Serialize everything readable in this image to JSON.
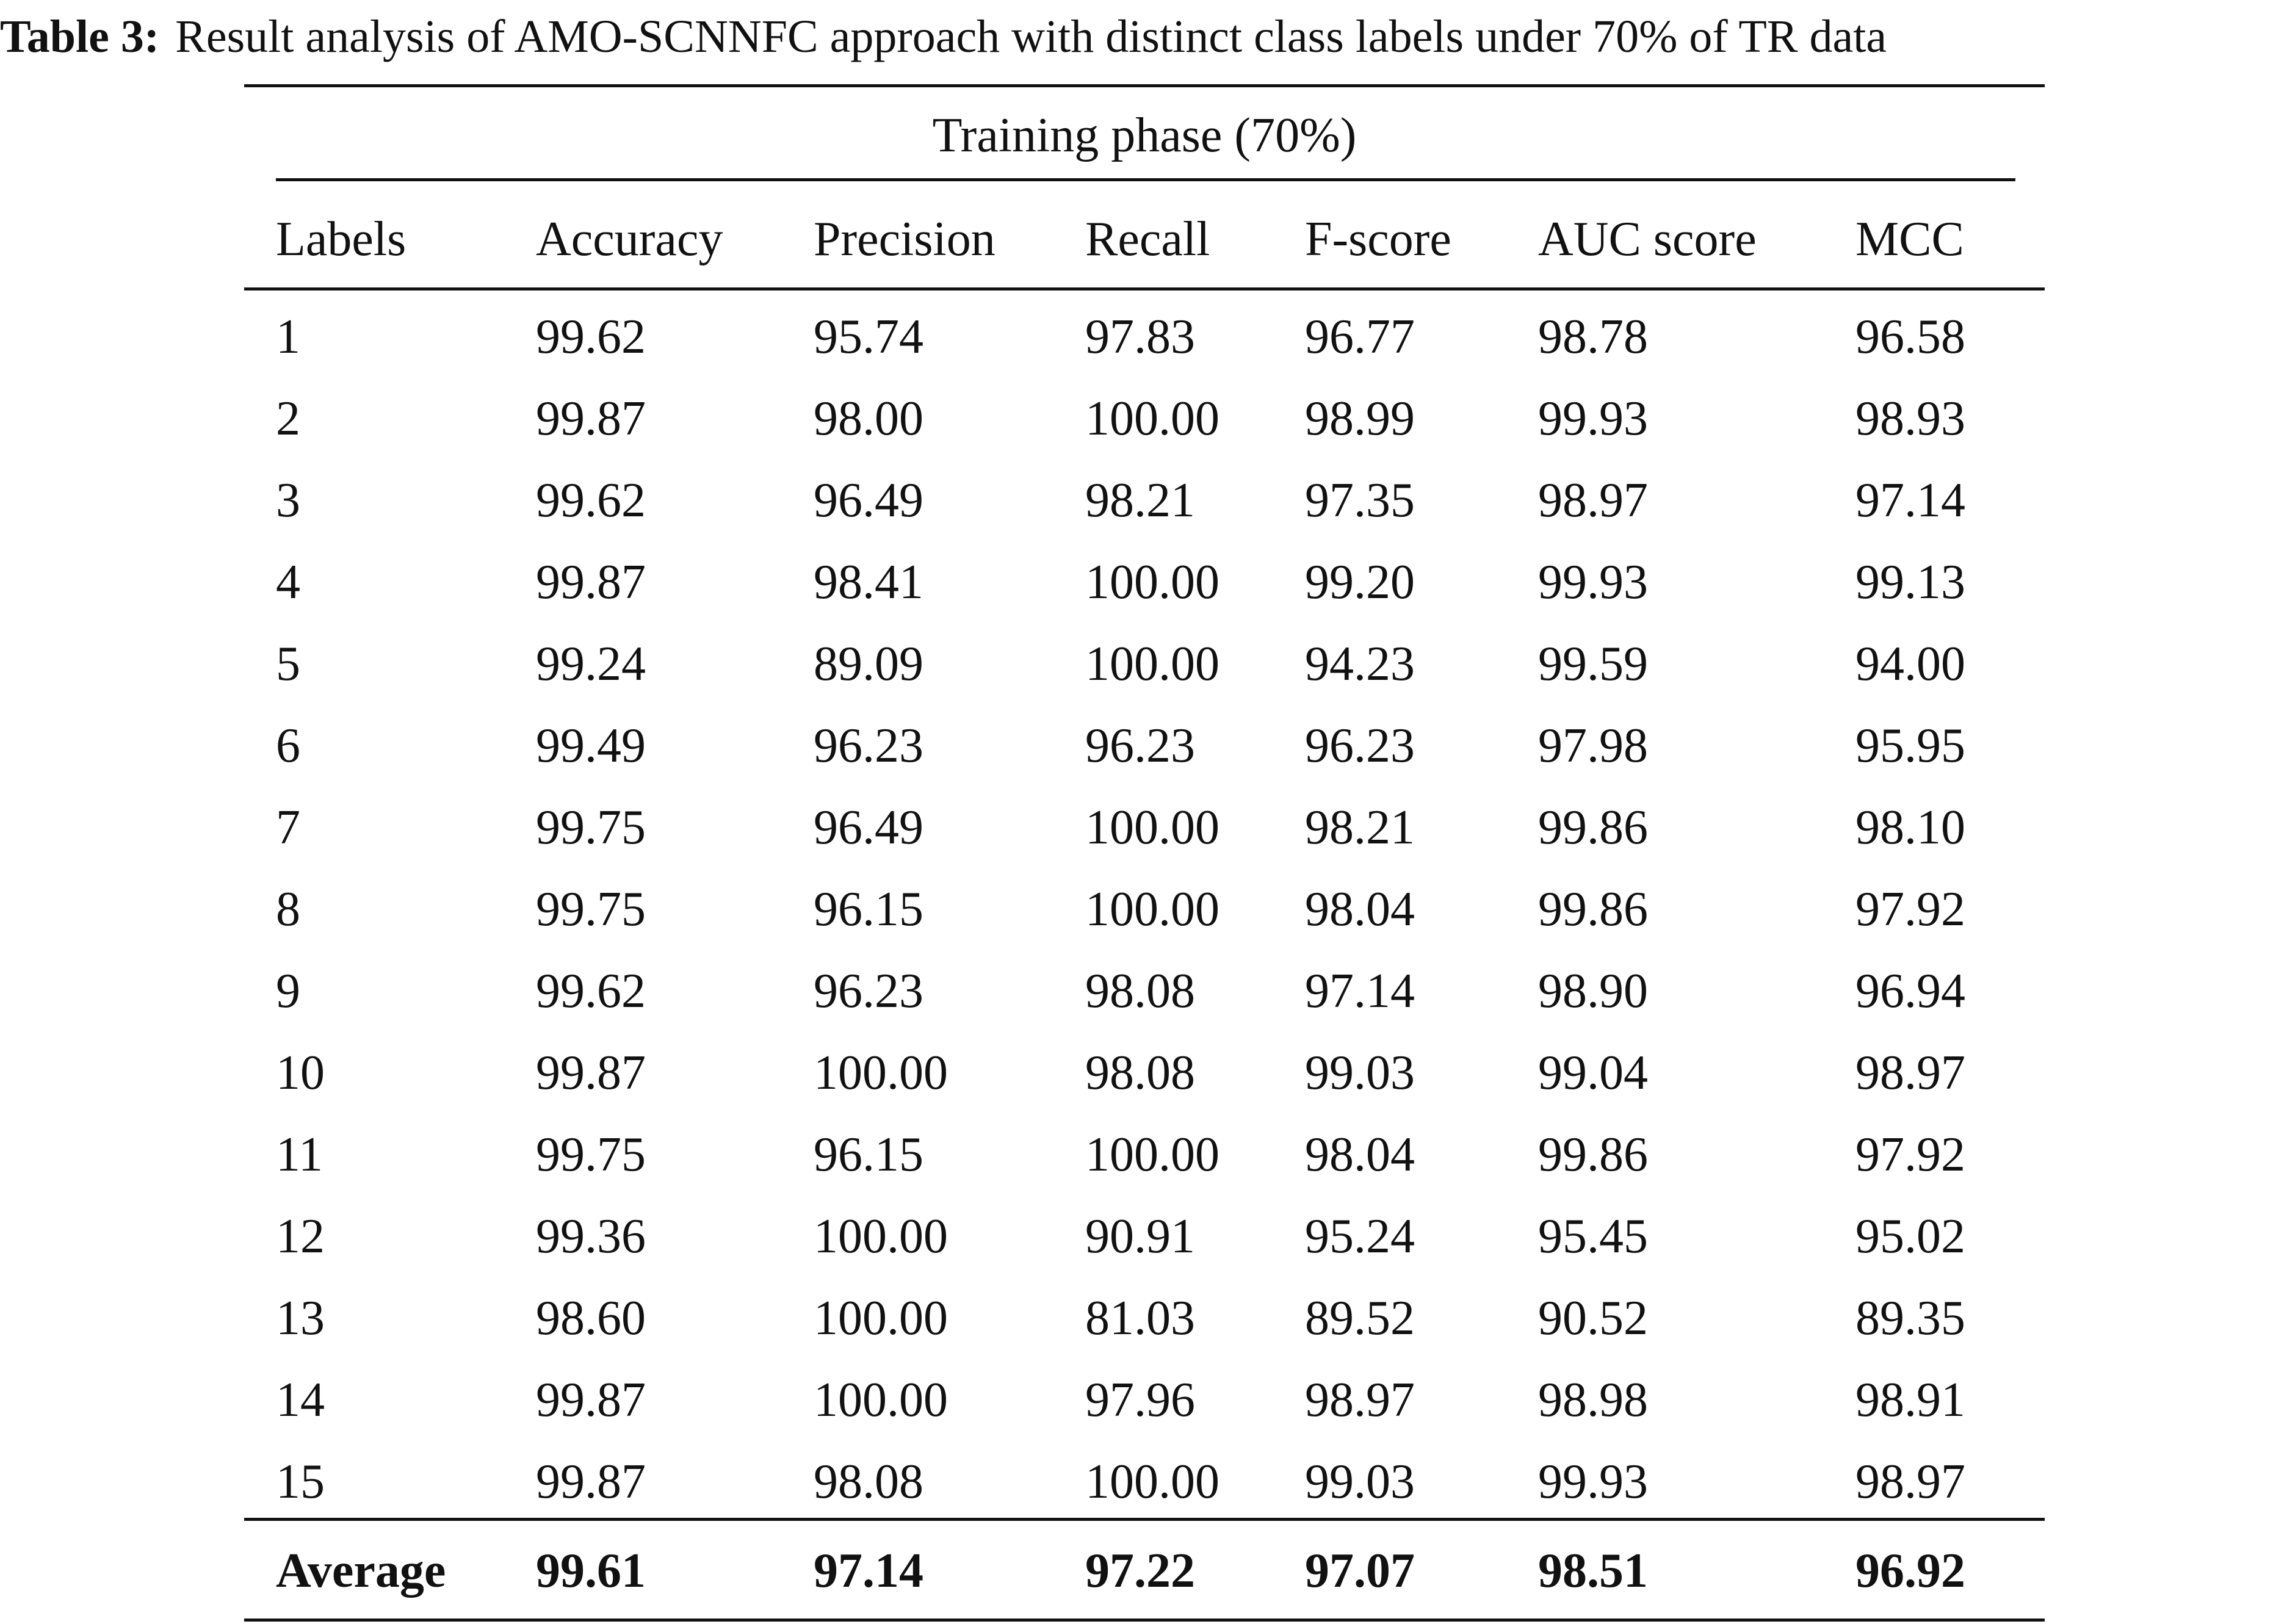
{
  "caption": {
    "label": "Table 3:",
    "text": "Result analysis of AMO-SCNNFC approach with distinct class labels under 70% of TR data"
  },
  "table": {
    "phase_title": "Training phase (70%)",
    "columns": [
      "Labels",
      "Accuracy",
      "Precision",
      "Recall",
      "F-score",
      "AUC score",
      "MCC"
    ],
    "rows": [
      [
        "1",
        "99.62",
        "95.74",
        "97.83",
        "96.77",
        "98.78",
        "96.58"
      ],
      [
        "2",
        "99.87",
        "98.00",
        "100.00",
        "98.99",
        "99.93",
        "98.93"
      ],
      [
        "3",
        "99.62",
        "96.49",
        "98.21",
        "97.35",
        "98.97",
        "97.14"
      ],
      [
        "4",
        "99.87",
        "98.41",
        "100.00",
        "99.20",
        "99.93",
        "99.13"
      ],
      [
        "5",
        "99.24",
        "89.09",
        "100.00",
        "94.23",
        "99.59",
        "94.00"
      ],
      [
        "6",
        "99.49",
        "96.23",
        "96.23",
        "96.23",
        "97.98",
        "95.95"
      ],
      [
        "7",
        "99.75",
        "96.49",
        "100.00",
        "98.21",
        "99.86",
        "98.10"
      ],
      [
        "8",
        "99.75",
        "96.15",
        "100.00",
        "98.04",
        "99.86",
        "97.92"
      ],
      [
        "9",
        "99.62",
        "96.23",
        "98.08",
        "97.14",
        "98.90",
        "96.94"
      ],
      [
        "10",
        "99.87",
        "100.00",
        "98.08",
        "99.03",
        "99.04",
        "98.97"
      ],
      [
        "11",
        "99.75",
        "96.15",
        "100.00",
        "98.04",
        "99.86",
        "97.92"
      ],
      [
        "12",
        "99.36",
        "100.00",
        "90.91",
        "95.24",
        "95.45",
        "95.02"
      ],
      [
        "13",
        "98.60",
        "100.00",
        "81.03",
        "89.52",
        "90.52",
        "89.35"
      ],
      [
        "14",
        "99.87",
        "100.00",
        "97.96",
        "98.97",
        "98.98",
        "98.91"
      ],
      [
        "15",
        "99.87",
        "98.08",
        "100.00",
        "99.03",
        "99.93",
        "98.97"
      ]
    ],
    "average": [
      "Average",
      "99.61",
      "97.14",
      "97.22",
      "97.07",
      "98.51",
      "96.92"
    ]
  }
}
